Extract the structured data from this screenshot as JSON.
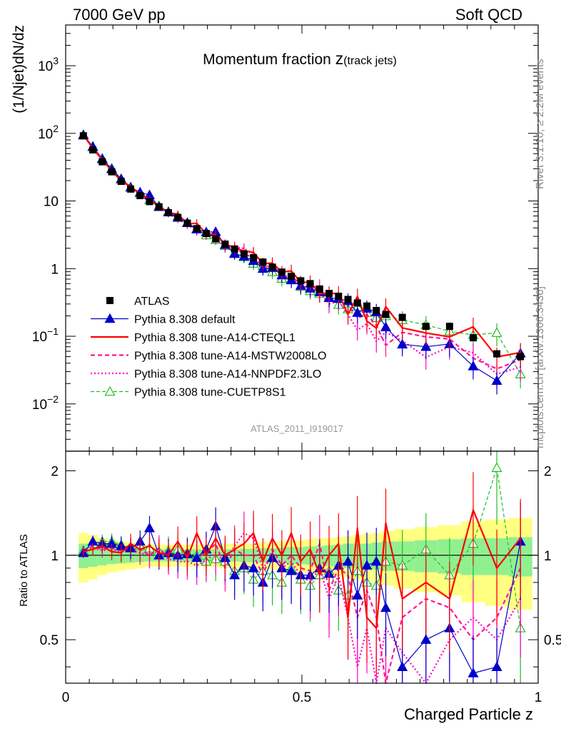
{
  "chart_data": {
    "type": "scatter",
    "header_left": "7000 GeV pp",
    "header_right": "Soft QCD",
    "title_main": "Momentum fraction ",
    "title_z": "z",
    "title_sub": "(track jets)",
    "analysis": "ATLAS_2011_I919017",
    "side_rivet": "Rivet 3.1.10, ≥ 2.2M events",
    "side_site": "mcplots.cern.ch [arXiv:1306.3436]",
    "xlabel": "Charged Particle z",
    "ylabel_main": "(1/Njet)dN/dz",
    "ylabel_ratio": "Ratio to ATLAS",
    "xlim": [
      0,
      1.0
    ],
    "ylim_main": [
      0.002,
      4000
    ],
    "ylim_ratio": [
      0.35,
      2.35
    ],
    "main_yscale": "log",
    "x_ticks": [
      "0",
      "0.5",
      "1"
    ],
    "main_y_ticks": [
      {
        "base": "10",
        "exp": "−2",
        "value": 0.01
      },
      {
        "base": "10",
        "exp": "−1",
        "value": 0.1
      },
      {
        "base": "1",
        "exp": "",
        "value": 1
      },
      {
        "base": "10",
        "exp": "",
        "value": 10
      },
      {
        "base": "10",
        "exp": "2",
        "value": 100
      },
      {
        "base": "10",
        "exp": "3",
        "value": 1000
      }
    ],
    "ratio_y_ticks": [
      "0.5",
      "1",
      "2"
    ],
    "legend_placement": "bottom-left",
    "x": [
      0.0375,
      0.0575,
      0.0775,
      0.0975,
      0.1175,
      0.1375,
      0.1575,
      0.1775,
      0.1975,
      0.2175,
      0.2375,
      0.2575,
      0.2775,
      0.2975,
      0.3175,
      0.3375,
      0.3575,
      0.3775,
      0.3975,
      0.4175,
      0.4375,
      0.4575,
      0.4775,
      0.4975,
      0.5175,
      0.5375,
      0.5575,
      0.5775,
      0.5975,
      0.6175,
      0.6375,
      0.6575,
      0.6775,
      0.7125,
      0.7625,
      0.8125,
      0.8625,
      0.9125,
      0.9625
    ],
    "data_series": {
      "name": "ATLAS",
      "values": [
        92,
        57,
        38,
        27,
        19.5,
        15,
        12,
        9.8,
        8.2,
        6.7,
        5.7,
        4.7,
        3.9,
        3.3,
        2.75,
        2.3,
        1.95,
        1.65,
        1.45,
        1.25,
        1.05,
        0.89,
        0.77,
        0.66,
        0.6,
        0.5,
        0.43,
        0.39,
        0.35,
        0.31,
        0.28,
        0.24,
        0.21,
        0.19,
        0.14,
        0.14,
        0.095,
        0.055,
        0.05
      ]
    },
    "ratio_bands": {
      "inner": [
        0.1,
        0.09,
        0.08,
        0.07,
        0.065,
        0.06,
        0.055,
        0.05,
        0.05,
        0.05,
        0.05,
        0.05,
        0.05,
        0.05,
        0.05,
        0.05,
        0.05,
        0.055,
        0.055,
        0.06,
        0.06,
        0.065,
        0.07,
        0.07,
        0.075,
        0.08,
        0.085,
        0.09,
        0.1,
        0.1,
        0.1,
        0.11,
        0.12,
        0.12,
        0.13,
        0.14,
        0.15,
        0.15,
        0.16
      ],
      "outer": [
        0.2,
        0.18,
        0.15,
        0.13,
        0.12,
        0.11,
        0.1,
        0.09,
        0.09,
        0.09,
        0.09,
        0.09,
        0.09,
        0.09,
        0.09,
        0.1,
        0.1,
        0.1,
        0.1,
        0.11,
        0.11,
        0.12,
        0.13,
        0.13,
        0.14,
        0.15,
        0.15,
        0.16,
        0.17,
        0.18,
        0.19,
        0.2,
        0.22,
        0.24,
        0.26,
        0.28,
        0.32,
        0.34,
        0.36
      ]
    },
    "series": [
      {
        "name": "Pythia 8.308 default",
        "color": "#0000cc",
        "dash": "",
        "marker": "tri",
        "width": 1.2,
        "ratio": [
          1.02,
          1.12,
          1.1,
          1.1,
          1.08,
          1.06,
          1.12,
          1.25,
          1.0,
          1.02,
          1.0,
          1.01,
          0.98,
          1.05,
          1.27,
          0.98,
          0.85,
          0.92,
          0.9,
          0.8,
          0.98,
          0.9,
          0.88,
          0.85,
          0.85,
          0.9,
          0.86,
          0.92,
          0.95,
          0.72,
          0.92,
          0.95,
          0.65,
          0.4,
          0.5,
          0.55,
          0.38,
          0.4,
          1.12
        ]
      },
      {
        "name": "Pythia 8.308 tune-A14-CTEQL1",
        "color": "#ff0000",
        "dash": "",
        "marker": "none",
        "width": 2.2,
        "ratio": [
          1.03,
          1.05,
          1.08,
          1.03,
          1.02,
          1.1,
          1.05,
          1.08,
          1.02,
          1.0,
          1.12,
          0.98,
          1.2,
          1.0,
          1.15,
          1.0,
          1.05,
          1.1,
          1.2,
          0.95,
          1.15,
          1.0,
          1.2,
          0.95,
          1.05,
          0.85,
          1.0,
          1.1,
          0.6,
          1.25,
          0.6,
          0.55,
          1.3,
          0.7,
          0.8,
          0.7,
          1.45,
          0.9,
          1.15
        ]
      },
      {
        "name": "Pythia 8.308 tune-A14-MSTW2008LO",
        "color": "#ff1493",
        "dash": "6,4",
        "marker": "none",
        "width": 2.2,
        "ratio": [
          1.04,
          1.08,
          1.05,
          1.06,
          1.04,
          1.06,
          1.05,
          1.0,
          1.06,
          0.98,
          1.0,
          1.0,
          0.98,
          1.02,
          1.1,
          0.9,
          1.05,
          1.0,
          1.0,
          0.85,
          1.05,
          0.92,
          1.0,
          0.9,
          0.88,
          1.1,
          0.75,
          0.9,
          0.85,
          0.6,
          0.75,
          0.6,
          0.35,
          0.6,
          0.7,
          0.65,
          0.5,
          0.6,
          0.9
        ]
      },
      {
        "name": "Pythia 8.308 tune-A14-NNPDF2.3LO",
        "color": "#ff00cc",
        "dash": "2,3",
        "marker": "none",
        "width": 2.2,
        "ratio": [
          1.03,
          1.06,
          1.04,
          1.05,
          1.03,
          1.04,
          1.02,
          1.0,
          1.04,
          0.97,
          0.95,
          0.95,
          0.92,
          0.96,
          1.02,
          0.95,
          1.08,
          1.2,
          1.15,
          0.9,
          1.0,
          0.9,
          0.95,
          0.85,
          0.8,
          0.9,
          0.7,
          0.85,
          0.6,
          0.4,
          0.55,
          0.35,
          0.55,
          0.45,
          0.35,
          0.5,
          0.6,
          0.5,
          0.7
        ]
      },
      {
        "name": "Pythia 8.308 tune-CUETP8S1",
        "color": "#22bb22",
        "dash": "5,3",
        "marker": "otri",
        "width": 1.2,
        "ratio": [
          1.04,
          1.1,
          1.12,
          1.12,
          1.09,
          1.07,
          1.08,
          1.06,
          1.03,
          1.04,
          1.05,
          1.02,
          1.0,
          0.95,
          0.97,
          0.95,
          0.88,
          0.9,
          0.82,
          0.88,
          0.85,
          0.8,
          0.9,
          0.82,
          0.78,
          0.85,
          0.88,
          0.75,
          0.72,
          0.88,
          0.8,
          0.78,
          0.95,
          0.92,
          1.05,
          0.85,
          1.1,
          2.05,
          0.55
        ]
      }
    ]
  }
}
